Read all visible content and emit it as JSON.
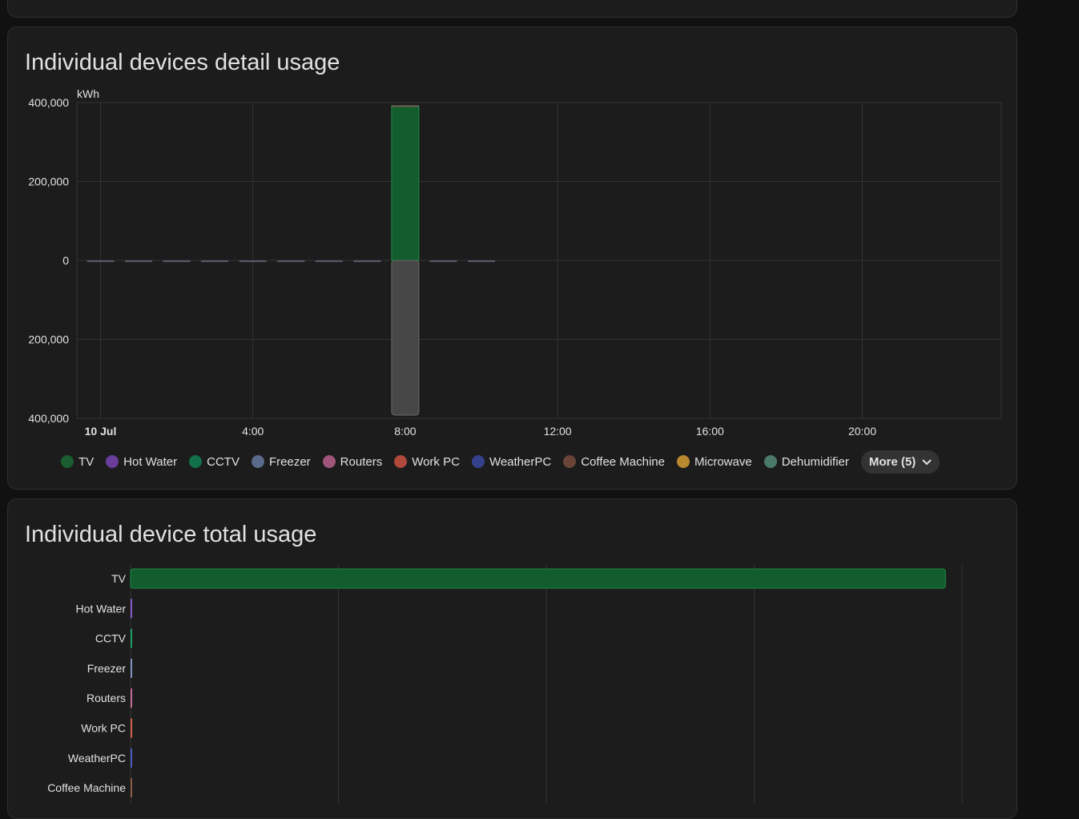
{
  "cards": {
    "detail": {
      "title": "Individual devices detail usage"
    },
    "total": {
      "title": "Individual device total usage"
    }
  },
  "colors": {
    "background": "#111111",
    "card": "#1c1c1c",
    "grid": "#333333",
    "consumption": "#1e7a3a",
    "return": "#555555"
  },
  "legend": {
    "items": [
      {
        "label": "TV",
        "color": "#1b5e30"
      },
      {
        "label": "Hot Water",
        "color": "#6a3d9a"
      },
      {
        "label": "CCTV",
        "color": "#12704a"
      },
      {
        "label": "Freezer",
        "color": "#5a6a8a"
      },
      {
        "label": "Routers",
        "color": "#a0557a"
      },
      {
        "label": "Work PC",
        "color": "#b04a3c"
      },
      {
        "label": "WeatherPC",
        "color": "#34418c"
      },
      {
        "label": "Coffee Machine",
        "color": "#6b4438"
      },
      {
        "label": "Microwave",
        "color": "#b8892e"
      },
      {
        "label": "Dehumidifier",
        "color": "#4c7a6a"
      }
    ],
    "more_label": "More (5)",
    "more_icon": "chevron-down-icon"
  },
  "chart_data": [
    {
      "type": "bar",
      "stacked": true,
      "ylabel": "kWh",
      "ylim": [
        -400000,
        400000
      ],
      "y_ticks": [
        400000,
        200000,
        0,
        -200000,
        -400000
      ],
      "y_tick_labels": [
        "400,000",
        "200,000",
        "0",
        "200,000",
        "400,000"
      ],
      "x_ticks": [
        "10 Jul",
        "4:00",
        "8:00",
        "12:00",
        "16:00",
        "20:00"
      ],
      "x": [
        "00:00",
        "01:00",
        "02:00",
        "03:00",
        "04:00",
        "05:00",
        "06:00",
        "07:00",
        "08:00",
        "09:00",
        "10:00"
      ],
      "series": [
        {
          "name": "TV",
          "values": [
            0,
            0,
            0,
            0,
            0,
            0,
            0,
            0,
            392000,
            0,
            0
          ]
        },
        {
          "name": "",
          "values": [
            0,
            0,
            0,
            0,
            0,
            0,
            0,
            0,
            -392000,
            0,
            0
          ]
        }
      ],
      "grid": true
    },
    {
      "type": "bar",
      "orientation": "horizontal",
      "categories": [
        "TV",
        "Hot Water",
        "CCTV",
        "Freezer",
        "Routers",
        "Work PC",
        "WeatherPC",
        "Coffee Machine"
      ],
      "values": [
        392000,
        0,
        0,
        0,
        0,
        0,
        0,
        0
      ],
      "colors": [
        "#1b5e30",
        "#8a5cc9",
        "#1a9a64",
        "#7f8fbf",
        "#c46a96",
        "#d4604e",
        "#4b5ac0",
        "#8a5a44"
      ],
      "xlim": [
        0,
        400000
      ],
      "grid": true
    }
  ]
}
